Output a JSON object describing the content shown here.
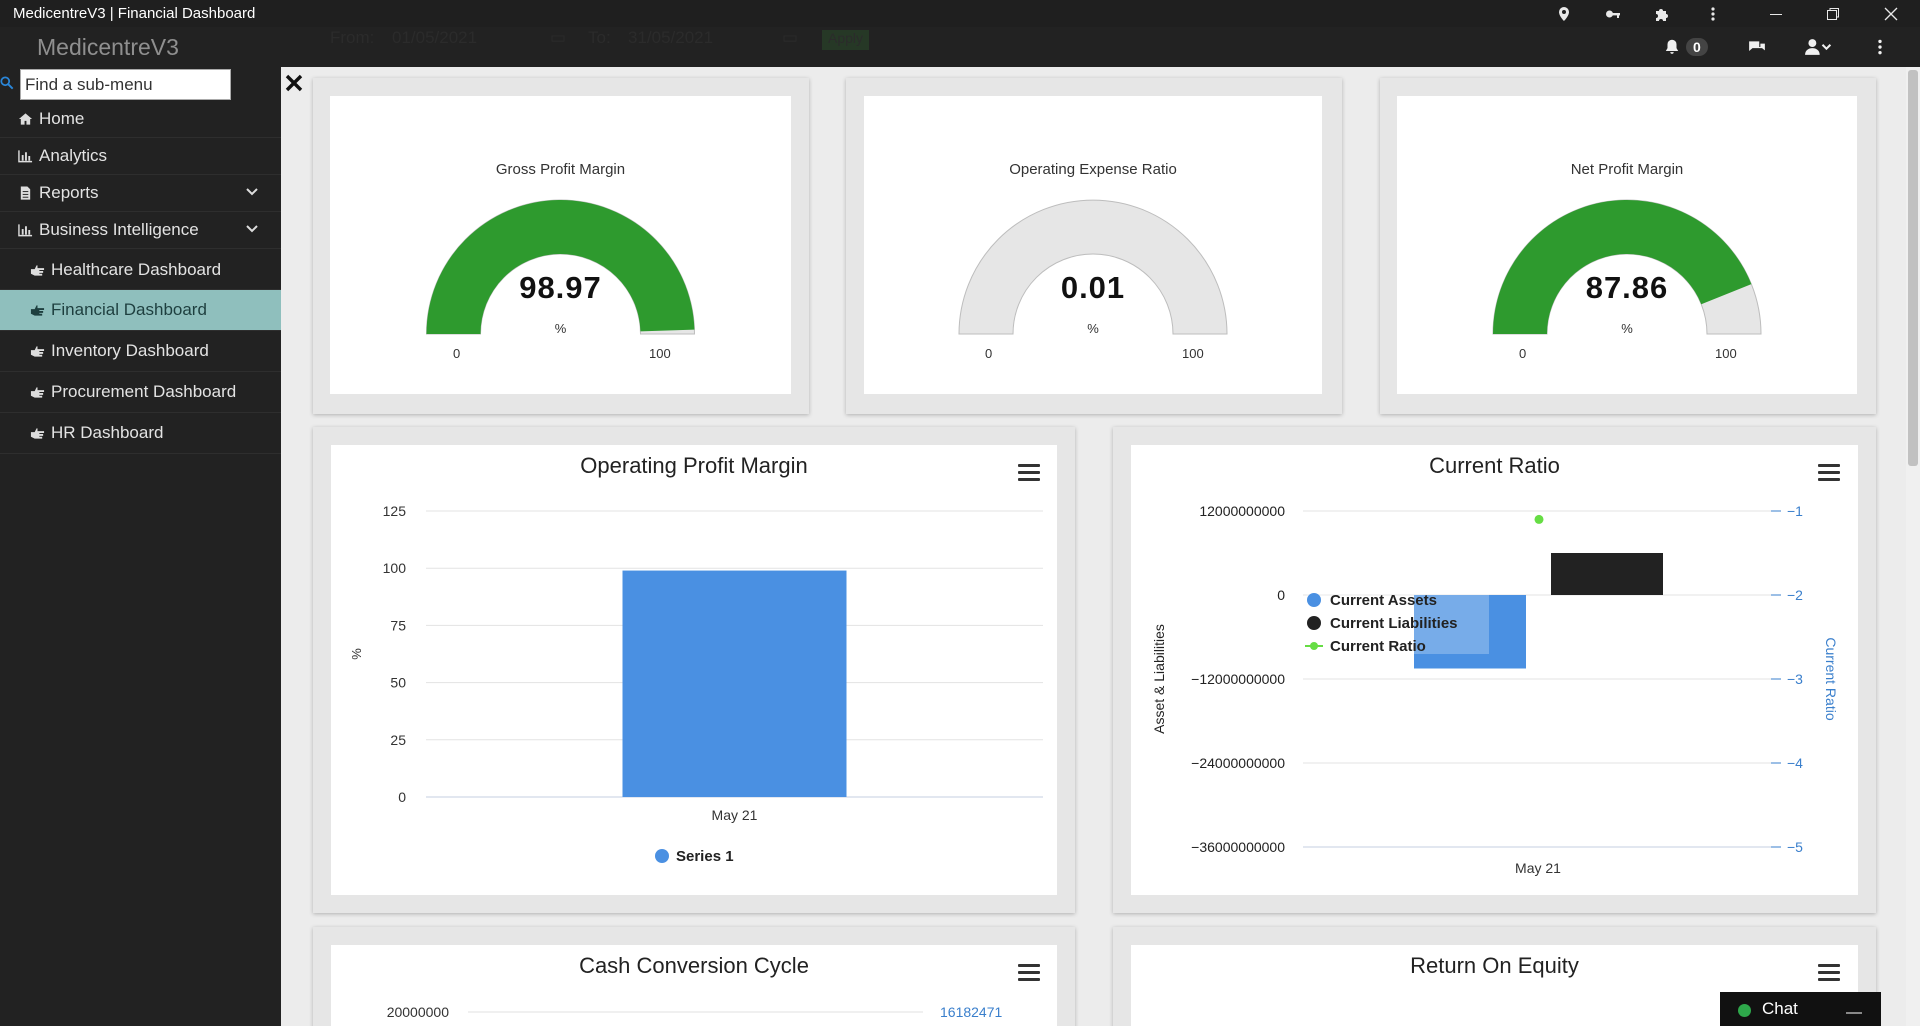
{
  "window": {
    "title": "MedicentreV3 | Financial Dashboard",
    "icons": [
      "location-icon",
      "key-icon",
      "puzzle-icon",
      "more-vertical-icon",
      "minimize-icon",
      "restore-icon",
      "close-icon"
    ]
  },
  "navbar": {
    "brand": "MedicentreV3",
    "filter_from_label": "From:",
    "filter_from_value": "01/05/2021",
    "filter_to_label": "To:",
    "filter_to_value": "31/05/2021",
    "apply_label": "Apply",
    "notification_count": "0"
  },
  "sidebar": {
    "search_placeholder": "Find a sub-menu",
    "items": [
      {
        "label": "Home",
        "icon": "home-icon"
      },
      {
        "label": "Analytics",
        "icon": "bar-chart-icon"
      },
      {
        "label": "Reports",
        "icon": "file-icon"
      },
      {
        "label": "Business Intelligence",
        "icon": "bar-chart-icon"
      },
      {
        "label": "Healthcare Dashboard",
        "icon": "hand-point-right-icon"
      },
      {
        "label": "Financial Dashboard",
        "icon": "hand-point-right-icon"
      },
      {
        "label": "Inventory Dashboard",
        "icon": "hand-point-right-icon"
      },
      {
        "label": "Procurement Dashboard",
        "icon": "hand-point-right-icon"
      },
      {
        "label": "HR Dashboard",
        "icon": "hand-point-right-icon"
      }
    ]
  },
  "gauges": [
    {
      "title": "Gross Profit Margin",
      "value": "98.97",
      "unit": "%",
      "min": "0",
      "max": "100",
      "fraction": 0.9897,
      "color": "#2e9a2e"
    },
    {
      "title": "Operating Expense Ratio",
      "value": "0.01",
      "unit": "%",
      "min": "0",
      "max": "100",
      "fraction": 0.0001,
      "color": "#2e9a2e"
    },
    {
      "title": "Net Profit Margin",
      "value": "87.86",
      "unit": "%",
      "min": "0",
      "max": "100",
      "fraction": 0.8786,
      "color": "#2e9a2e"
    }
  ],
  "chart_data": [
    {
      "type": "bar",
      "title": "Operating Profit Margin",
      "categories": [
        "May 21"
      ],
      "series": [
        {
          "name": "Series 1",
          "values": [
            98.97
          ],
          "color": "#4a90e2"
        }
      ],
      "ylabel": "%",
      "ylim": [
        0,
        125
      ],
      "yticks": [
        "0",
        "25",
        "50",
        "75",
        "100",
        "125"
      ],
      "legend": "bottom-center"
    },
    {
      "type": "bar",
      "title": "Current Ratio",
      "categories": [
        "May 21"
      ],
      "series": [
        {
          "name": "Current Assets",
          "values": [
            -10500000000
          ],
          "color": "#4a90e2"
        },
        {
          "name": "Current Liabilities",
          "values": [
            6000000000
          ],
          "color": "#222222"
        },
        {
          "name": "Current Ratio",
          "values": [
            -1.1
          ],
          "color": "#66dd44",
          "axis": "right",
          "kind": "line"
        }
      ],
      "ylabel": "Asset & Liabilities",
      "ylabel_right": "Current Ratio",
      "yticks": [
        "12000000000",
        "0",
        "-12000000000",
        "-24000000000",
        "-36000000000"
      ],
      "yticks_right": [
        "-1",
        "-2",
        "-3",
        "-4",
        "-5"
      ],
      "legend": "top-left-inside"
    },
    {
      "type": "bar",
      "title": "Cash Conversion Cycle",
      "yticks": [
        "20000000"
      ],
      "yticks_right": [
        "16182471"
      ]
    },
    {
      "type": "bar",
      "title": "Return On Equity"
    }
  ],
  "chat": {
    "label": "Chat"
  }
}
